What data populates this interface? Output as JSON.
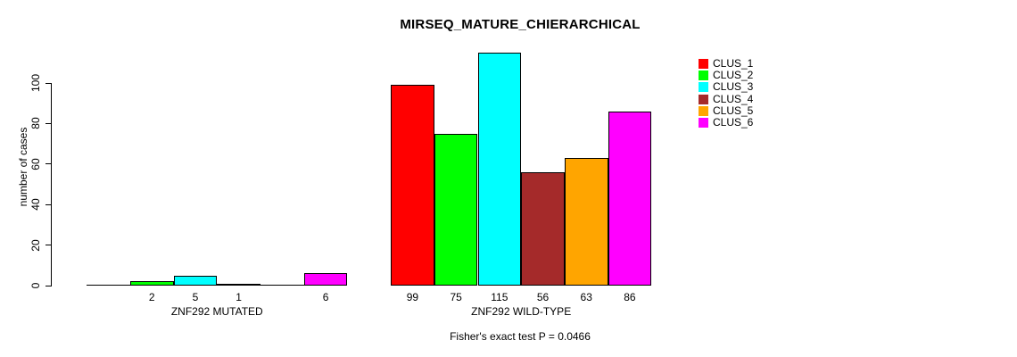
{
  "chart_data": {
    "type": "bar",
    "title": "MIRSEQ_MATURE_CHIERARCHICAL",
    "xlabel": "",
    "ylabel": "number of cases",
    "ylim": [
      0,
      115
    ],
    "yticks": [
      0,
      20,
      40,
      60,
      80,
      100
    ],
    "grid": false,
    "categories": [
      "CLUS_1",
      "CLUS_2",
      "CLUS_3",
      "CLUS_4",
      "CLUS_5",
      "CLUS_6"
    ],
    "colors": [
      "#FF0000",
      "#00FF00",
      "#00FFFF",
      "#A52A2A",
      "#FFA500",
      "#FF00FF"
    ],
    "groups": [
      {
        "label": "ZNF292 MUTATED",
        "values": [
          0,
          2,
          5,
          1,
          0,
          6
        ],
        "bar_labels": [
          "",
          "2",
          "5",
          "1",
          "",
          "6"
        ]
      },
      {
        "label": "ZNF292 WILD-TYPE",
        "values": [
          99,
          75,
          115,
          56,
          63,
          86
        ],
        "bar_labels": [
          "99",
          "75",
          "115",
          "56",
          "63",
          "86"
        ]
      }
    ],
    "legend": {
      "position": "right",
      "entries": [
        "CLUS_1",
        "CLUS_2",
        "CLUS_3",
        "CLUS_4",
        "CLUS_5",
        "CLUS_6"
      ]
    },
    "annotation": "Fisher's exact test P = 0.0466"
  }
}
